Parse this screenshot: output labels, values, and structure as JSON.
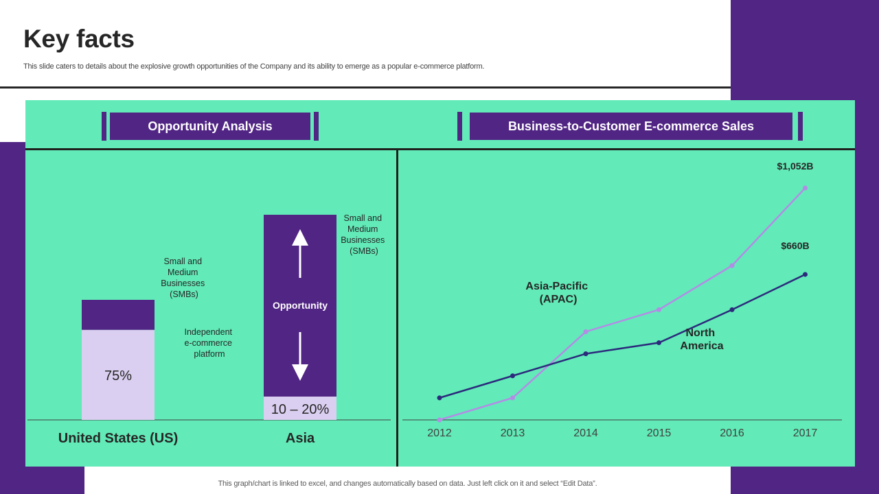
{
  "slide": {
    "title": "Key facts",
    "subtitle": "This slide caters to details about the explosive growth opportunities of the Company and its ability to emerge as a popular e-commerce platform.",
    "footer": "This graph/chart is linked to excel,  and changes automatically based on data. Just left click on it and select “Edit Data”."
  },
  "colors": {
    "panel": "#62eab8",
    "purple": "#512584",
    "lavender": "#dacff0",
    "apac_line": "#b38ce6",
    "na_line": "#2c2a7c"
  },
  "left_panel": {
    "header": "Opportunity Analysis"
  },
  "right_panel": {
    "header": "Business-to-Customer E-commerce Sales"
  },
  "chart_data": [
    {
      "type": "bar",
      "title": "Opportunity Analysis",
      "categories": [
        "United States (US)",
        "Asia"
      ],
      "us": {
        "value_label": "75%",
        "segments": [
          {
            "name": "Independent e-commerce platform",
            "fraction": 0.75
          },
          {
            "name": "Small and Medium Businesses (SMBs)",
            "fraction": 0.25
          }
        ],
        "bottom_note": "Independent e-commerce platform",
        "top_note": "Small and Medium Businesses (SMBs)"
      },
      "asia": {
        "value_label": "10 – 20%",
        "segment_label": "Opportunity",
        "note": "Small and Medium Businesses (SMBs)"
      }
    },
    {
      "type": "line",
      "title": "Business-to-Customer E-commerce Sales",
      "x": [
        "2012",
        "2013",
        "2014",
        "2015",
        "2016",
        "2017"
      ],
      "ylim": [
        0,
        1100
      ],
      "series": [
        {
          "name": "Asia-Pacific (APAC)",
          "values": [
            0,
            100,
            400,
            500,
            700,
            1052
          ],
          "end_label": "$1,052B"
        },
        {
          "name": "North America",
          "values": [
            100,
            200,
            300,
            350,
            500,
            660
          ],
          "end_label": "$660B"
        }
      ]
    }
  ]
}
